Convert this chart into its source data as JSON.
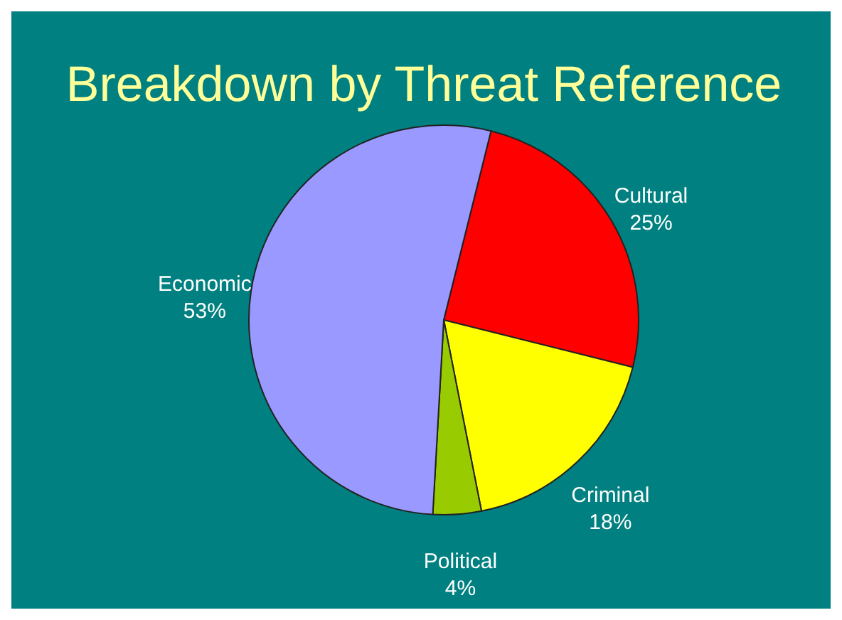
{
  "chart_data": {
    "type": "pie",
    "title": "Breakdown by Threat Reference",
    "categories": [
      "Cultural",
      "Criminal",
      "Political",
      "Economic"
    ],
    "values": [
      25,
      18,
      4,
      53
    ],
    "value_labels": [
      "25%",
      "18%",
      "4%",
      "53%"
    ],
    "colors": [
      "#ff0000",
      "#ffff00",
      "#99cc00",
      "#9999ff"
    ]
  }
}
